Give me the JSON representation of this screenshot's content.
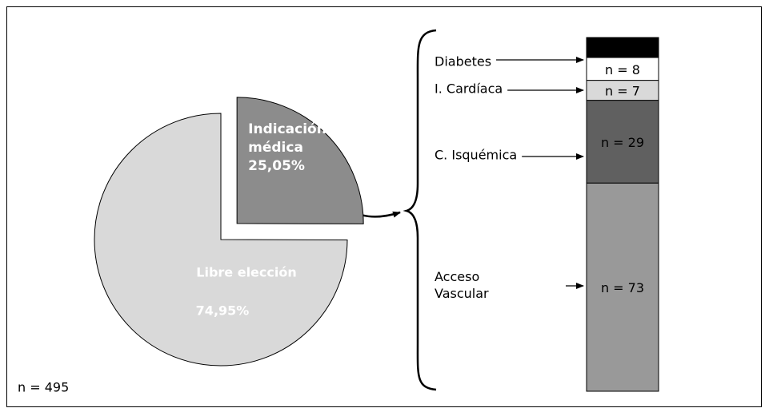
{
  "chart_data": [
    {
      "type": "pie",
      "categories": [
        "Indicación médica",
        "Libre elección"
      ],
      "values": [
        25.05,
        74.95
      ],
      "value_labels": [
        "25,05%",
        "74,95%"
      ],
      "colors": [
        "#8c8c8c",
        "#d9d9d9"
      ],
      "explode": [
        0.18,
        0
      ],
      "annotation": "n = 495"
    },
    {
      "type": "stacked-column",
      "categories": [
        "Acceso Vascular",
        "C. Isquémica",
        "I. Cardíaca",
        "Diabetes",
        null
      ],
      "values": [
        73,
        29,
        7,
        8,
        7
      ],
      "value_labels": [
        "n = 73",
        "n = 29",
        "n = 7",
        "n = 8",
        null
      ],
      "colors": [
        "#999999",
        "#606060",
        "#d9d9d9",
        "#ffffff",
        "#000000"
      ]
    }
  ]
}
